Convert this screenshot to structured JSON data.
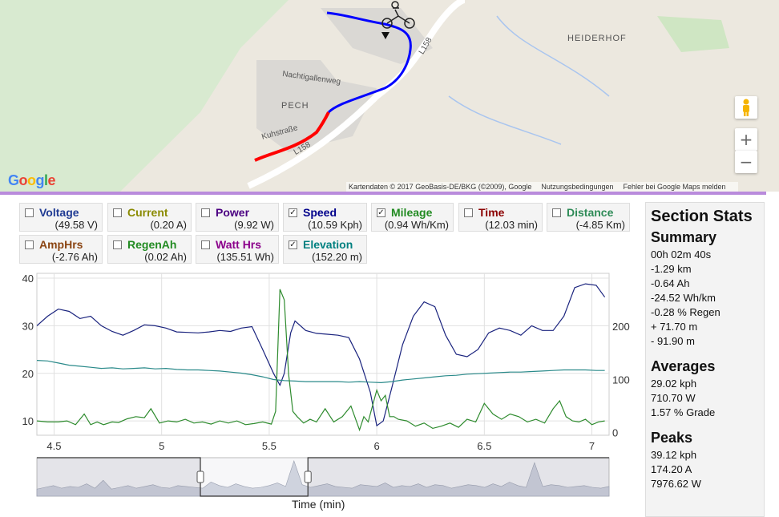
{
  "map": {
    "labels": {
      "heiderhof": "HEIDERHOF",
      "pech": "PECH",
      "nachtigallenweg": "Nachtigallenweg",
      "kuhstrasse": "Kuhstraße",
      "road_l158_a": "L158",
      "road_l158_b": "L158"
    },
    "logo": [
      "G",
      "o",
      "o",
      "g",
      "l",
      "e"
    ],
    "logo_colors": [
      "#4285F4",
      "#EA4335",
      "#FBBC05",
      "#4285F4",
      "#34A853",
      "#EA4335"
    ],
    "attribution": {
      "data": "Kartendaten © 2017 GeoBasis-DE/BKG (©2009), Google",
      "terms": "Nutzungsbedingungen",
      "report": "Fehler bei Google Maps melden"
    },
    "controls": {
      "zoom_in": "+",
      "zoom_out": "−",
      "pegman_icon": "pegman-icon"
    },
    "track_colors": {
      "uphill": "#ff0000",
      "downhill": "#0000ff"
    }
  },
  "sensors": [
    {
      "id": "voltage",
      "name": "Voltage",
      "value": "(49.58 V)",
      "checked": false,
      "color": "#1f3a93"
    },
    {
      "id": "current",
      "name": "Current",
      "value": "(0.20 A)",
      "checked": false,
      "color": "#8a8a00"
    },
    {
      "id": "power",
      "name": "Power",
      "value": "(9.92 W)",
      "checked": false,
      "color": "#4b0082"
    },
    {
      "id": "speed",
      "name": "Speed",
      "value": "(10.59 Kph)",
      "checked": true,
      "color": "#00008b"
    },
    {
      "id": "mileage",
      "name": "Mileage",
      "value": "(0.94 Wh/Km)",
      "checked": true,
      "color": "#228b22"
    },
    {
      "id": "time",
      "name": "Time",
      "value": "(12.03 min)",
      "checked": false,
      "color": "#8b0000"
    },
    {
      "id": "distance",
      "name": "Distance",
      "value": "(-4.85 Km)",
      "checked": false,
      "color": "#2e8b57"
    },
    {
      "id": "amphrs",
      "name": "AmpHrs",
      "value": "(-2.76 Ah)",
      "checked": false,
      "color": "#8b4513"
    },
    {
      "id": "regenah",
      "name": "RegenAh",
      "value": "(0.02 Ah)",
      "checked": false,
      "color": "#228b22"
    },
    {
      "id": "watthrs",
      "name": "Watt Hrs",
      "value": "(135.51 Wh)",
      "checked": false,
      "color": "#8b008b"
    },
    {
      "id": "elevation",
      "name": "Elevation",
      "value": "(152.20 m)",
      "checked": true,
      "color": "#008080"
    }
  ],
  "stats": {
    "title": "Section Stats",
    "summary_title": "Summary",
    "summary": [
      "00h 02m 40s",
      "-1.29 km",
      "-0.64 Ah",
      "-24.52 Wh/km",
      "-0.28 % Regen",
      "+ 71.70 m",
      "- 91.90 m"
    ],
    "averages_title": "Averages",
    "averages": [
      "29.02 kph",
      "710.70 W",
      "1.57 % Grade"
    ],
    "peaks_title": "Peaks",
    "peaks": [
      "39.12 kph",
      "174.20 A",
      "7976.62 W"
    ]
  },
  "chart_data": {
    "type": "line",
    "xlabel": "Time (min)",
    "xlim": [
      4.42,
      7.08
    ],
    "x_ticks": [
      "4.5",
      "5",
      "5.5",
      "6",
      "6.5",
      "7"
    ],
    "y_left_ticks": [
      "10",
      "20",
      "30",
      "40"
    ],
    "y_right_ticks": [
      "0",
      "100",
      "200"
    ],
    "ylim_left": [
      7,
      41
    ],
    "ylim_right": [
      -5,
      300
    ],
    "grid": true,
    "series": [
      {
        "axis": "left",
        "color": "#1a237e",
        "x": [
          4.42,
          4.47,
          4.52,
          4.57,
          4.62,
          4.67,
          4.72,
          4.77,
          4.82,
          4.87,
          4.92,
          4.97,
          5.02,
          5.07,
          5.12,
          5.17,
          5.22,
          5.27,
          5.32,
          5.37,
          5.42,
          5.47,
          5.52,
          5.55,
          5.57,
          5.6,
          5.62,
          5.67,
          5.72,
          5.77,
          5.82,
          5.87,
          5.92,
          5.97,
          6.0,
          6.03,
          6.07,
          6.12,
          6.17,
          6.22,
          6.27,
          6.32,
          6.37,
          6.42,
          6.47,
          6.52,
          6.57,
          6.62,
          6.67,
          6.72,
          6.77,
          6.82,
          6.87,
          6.92,
          6.97,
          7.02,
          7.06
        ],
        "values": [
          30,
          32,
          33.5,
          33,
          31.5,
          32,
          30,
          28.8,
          28,
          29,
          30.2,
          30,
          29.5,
          28.7,
          28.6,
          28.5,
          28.7,
          29,
          28.8,
          29.5,
          29.8,
          25,
          20,
          17.5,
          20,
          28.5,
          31,
          29,
          28.4,
          28.2,
          28,
          27.5,
          23,
          16,
          9,
          10,
          17,
          26,
          32,
          35,
          34,
          28,
          24,
          23.5,
          25,
          28.5,
          29.5,
          29,
          28,
          30,
          29,
          29,
          32,
          38,
          38.8,
          38.5,
          36
        ]
      },
      {
        "axis": "right",
        "color": "#2a8a8a",
        "x": [
          4.42,
          4.47,
          4.52,
          4.57,
          4.62,
          4.67,
          4.72,
          4.77,
          4.82,
          4.87,
          4.92,
          4.97,
          5.02,
          5.07,
          5.12,
          5.17,
          5.22,
          5.27,
          5.32,
          5.37,
          5.42,
          5.47,
          5.52,
          5.57,
          5.62,
          5.67,
          5.72,
          5.77,
          5.82,
          5.87,
          5.92,
          5.97,
          6.02,
          6.07,
          6.12,
          6.17,
          6.22,
          6.27,
          6.32,
          6.37,
          6.42,
          6.47,
          6.52,
          6.57,
          6.62,
          6.67,
          6.72,
          6.77,
          6.82,
          6.87,
          6.92,
          6.97,
          7.02,
          7.06
        ],
        "values": [
          136,
          135,
          131,
          127,
          125,
          123,
          121,
          122,
          120,
          121,
          122,
          120,
          121,
          119,
          118,
          118,
          117,
          116,
          114,
          112,
          109,
          105,
          100,
          98,
          97,
          96,
          96,
          96,
          96,
          95,
          96,
          95,
          94,
          96,
          99,
          101,
          103,
          105,
          107,
          108,
          110,
          111,
          112,
          113,
          114,
          114,
          115,
          116,
          117,
          118,
          118,
          118,
          117,
          117
        ]
      },
      {
        "axis": "right",
        "color": "#2e8b2e",
        "x": [
          4.42,
          4.47,
          4.52,
          4.56,
          4.6,
          4.64,
          4.67,
          4.7,
          4.73,
          4.77,
          4.8,
          4.84,
          4.88,
          4.92,
          4.95,
          4.99,
          5.03,
          5.07,
          5.11,
          5.15,
          5.19,
          5.23,
          5.27,
          5.31,
          5.35,
          5.39,
          5.43,
          5.47,
          5.51,
          5.53,
          5.55,
          5.57,
          5.59,
          5.61,
          5.63,
          5.66,
          5.69,
          5.72,
          5.76,
          5.8,
          5.84,
          5.88,
          5.92,
          5.94,
          5.96,
          5.98,
          6.0,
          6.02,
          6.04,
          6.06,
          6.08,
          6.1,
          6.14,
          6.18,
          6.22,
          6.26,
          6.3,
          6.34,
          6.38,
          6.42,
          6.46,
          6.5,
          6.54,
          6.58,
          6.62,
          6.66,
          6.7,
          6.74,
          6.78,
          6.82,
          6.85,
          6.88,
          6.91,
          6.94,
          6.97,
          7.0,
          7.03,
          7.06
        ],
        "values": [
          22,
          20,
          20,
          22,
          15,
          35,
          15,
          20,
          15,
          20,
          19,
          26,
          30,
          28,
          45,
          18,
          22,
          20,
          25,
          18,
          20,
          16,
          22,
          18,
          22,
          15,
          17,
          20,
          16,
          40,
          270,
          250,
          110,
          40,
          30,
          18,
          25,
          20,
          45,
          20,
          30,
          50,
          5,
          30,
          20,
          50,
          80,
          60,
          70,
          30,
          30,
          25,
          22,
          12,
          18,
          8,
          12,
          18,
          10,
          25,
          20,
          55,
          35,
          25,
          35,
          30,
          20,
          25,
          18,
          45,
          60,
          30,
          22,
          20,
          25,
          15,
          20,
          22
        ]
      }
    ],
    "overview": {
      "selection_x": [
        5.18,
        5.68
      ],
      "values": [
        8,
        10,
        12,
        9,
        11,
        10,
        14,
        9,
        18,
        8,
        10,
        12,
        9,
        11,
        13,
        10,
        9,
        12,
        11,
        10,
        9,
        16,
        12,
        10,
        14,
        11,
        9,
        10,
        12,
        15,
        11,
        40,
        13,
        10,
        12,
        14,
        11,
        10,
        9,
        13,
        12,
        11,
        15,
        10,
        12,
        11,
        14,
        10,
        13,
        12,
        9,
        11,
        13,
        12,
        10,
        14,
        11,
        16,
        12,
        10,
        38,
        11,
        13,
        12,
        10,
        11,
        12,
        10,
        9,
        11
      ]
    }
  }
}
